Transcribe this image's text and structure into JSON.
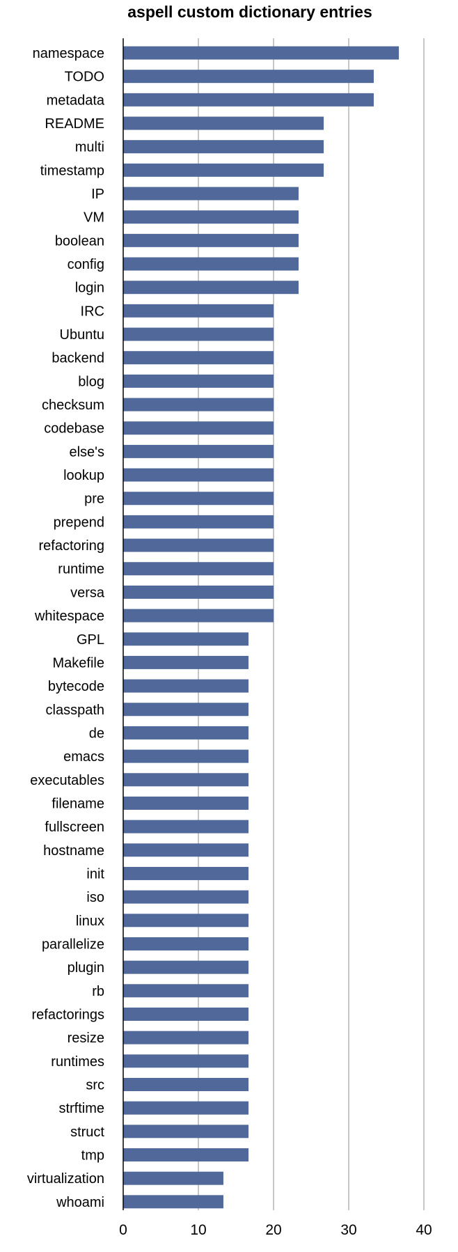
{
  "chart_data": {
    "type": "bar",
    "orientation": "horizontal",
    "title": "aspell custom dictionary entries",
    "xlabel": "",
    "ylabel": "",
    "xlim": [
      0,
      40
    ],
    "x_ticks": [
      0,
      10,
      20,
      30,
      40
    ],
    "grid": true,
    "legend": "none",
    "bar_color": "#51699a",
    "categories": [
      "namespace",
      "TODO",
      "metadata",
      "README",
      "multi",
      "timestamp",
      "IP",
      "VM",
      "boolean",
      "config",
      "login",
      "IRC",
      "Ubuntu",
      "backend",
      "blog",
      "checksum",
      "codebase",
      "else's",
      "lookup",
      "pre",
      "prepend",
      "refactoring",
      "runtime",
      "versa",
      "whitespace",
      "GPL",
      "Makefile",
      "bytecode",
      "classpath",
      "de",
      "emacs",
      "executables",
      "filename",
      "fullscreen",
      "hostname",
      "init",
      "iso",
      "linux",
      "parallelize",
      "plugin",
      "rb",
      "refactorings",
      "resize",
      "runtimes",
      "src",
      "strftime",
      "struct",
      "tmp",
      "virtualization",
      "whoami"
    ],
    "values": [
      36.67,
      33.33,
      33.33,
      26.67,
      26.67,
      26.67,
      23.33,
      23.33,
      23.33,
      23.33,
      23.33,
      20,
      20,
      20,
      20,
      20,
      20,
      20,
      20,
      20,
      20,
      20,
      20,
      20,
      20,
      16.67,
      16.67,
      16.67,
      16.67,
      16.67,
      16.67,
      16.67,
      16.67,
      16.67,
      16.67,
      16.67,
      16.67,
      16.67,
      16.67,
      16.67,
      16.67,
      16.67,
      16.67,
      16.67,
      16.67,
      16.67,
      16.67,
      16.67,
      13.33,
      13.33
    ]
  }
}
